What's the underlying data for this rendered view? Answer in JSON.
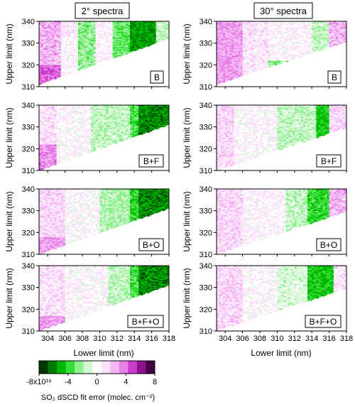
{
  "chart_data": {
    "type": "heatmap",
    "column_titles": [
      "2° spectra",
      "30° spectra"
    ],
    "row_labels": [
      "B",
      "B+F",
      "B+O",
      "B+F+O"
    ],
    "xlabel": "Lower limit (nm)",
    "ylabel": "Upper limit (nm)",
    "xlim": [
      303,
      318
    ],
    "ylim": [
      310,
      340
    ],
    "xticks": [
      "304",
      "306",
      "308",
      "310",
      "312",
      "314",
      "316",
      "318"
    ],
    "yticks": [
      "310",
      "320",
      "330",
      "340"
    ],
    "colorbar": {
      "label": "SO₂ dSCD fit error (molec. cm⁻²)",
      "range": [
        -8e+16,
        8e+16
      ],
      "tick_labels": [
        "-8x10¹⁶",
        "-4",
        "0",
        "4",
        "8"
      ],
      "tick_values": [
        -8,
        -4,
        0,
        4,
        8
      ],
      "colors": [
        "#003800",
        "#007a00",
        "#00b800",
        "#35de35",
        "#8ef08e",
        "#d6f7d6",
        "#ffffff",
        "#fbe2fb",
        "#f4b6f4",
        "#e67fe6",
        "#cc3ccc",
        "#8f128f",
        "#420042"
      ]
    },
    "invalid_region": "below diagonal (upper limit < lower limit + ~8 nm) shown white"
  },
  "texts": {
    "title_left": "2° spectra",
    "title_right": "30° spectra",
    "ylabel": "Upper limit (nm)",
    "xlabel": "Lower limit (nm)",
    "cb_label": "SO₂ dSCD fit error (molec. cm⁻²)"
  }
}
